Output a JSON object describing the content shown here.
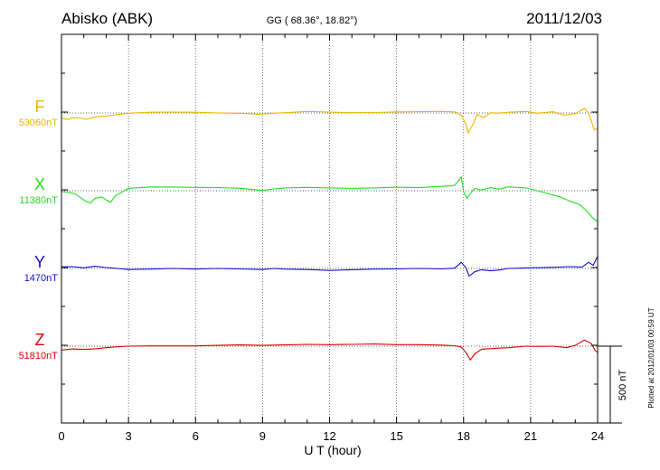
{
  "header": {
    "station": "Abisko (ABK)",
    "coords": "GG ( 68.36°,  18.82°)",
    "date": "2011/12/03"
  },
  "side_note": "Plotted at 2012/01/03 00:59 UT",
  "scale_bar": {
    "label": "500 nT",
    "value_nT": 500
  },
  "chart_data": {
    "type": "line",
    "xlabel": "U T (hour)",
    "xlim": [
      0,
      24
    ],
    "xticks": [
      0,
      3,
      6,
      9,
      12,
      15,
      18,
      21,
      24
    ],
    "xtick_labels": [
      "0",
      "3",
      "6",
      "9",
      "12",
      "15",
      "18",
      "21",
      "24"
    ],
    "grid": true,
    "series": [
      {
        "name": "F",
        "baseline_label": "53060nT",
        "baseline_nT": 53060,
        "color": "#f0b400",
        "points": [
          [
            0,
            53025
          ],
          [
            0.3,
            53018
          ],
          [
            0.5,
            53030
          ],
          [
            0.8,
            53028
          ],
          [
            1.1,
            53018
          ],
          [
            1.5,
            53035
          ],
          [
            2,
            53040
          ],
          [
            2.5,
            53050
          ],
          [
            3,
            53058
          ],
          [
            4,
            53065
          ],
          [
            5,
            53066
          ],
          [
            6,
            53065
          ],
          [
            7,
            53060
          ],
          [
            8,
            53058
          ],
          [
            8.8,
            53052
          ],
          [
            9.5,
            53058
          ],
          [
            10,
            53062
          ],
          [
            11,
            53070
          ],
          [
            12,
            53066
          ],
          [
            13,
            53062
          ],
          [
            14,
            53063
          ],
          [
            15,
            53067
          ],
          [
            16,
            53068
          ],
          [
            17,
            53070
          ],
          [
            17.6,
            53067
          ],
          [
            17.9,
            53045
          ],
          [
            18.1,
            52990
          ],
          [
            18.2,
            52930
          ],
          [
            18.4,
            52980
          ],
          [
            18.6,
            53050
          ],
          [
            18.9,
            53030
          ],
          [
            19.2,
            53062
          ],
          [
            19.5,
            53058
          ],
          [
            20,
            53065
          ],
          [
            20.8,
            53070
          ],
          [
            21.3,
            53058
          ],
          [
            22,
            53068
          ],
          [
            22.5,
            53045
          ],
          [
            23,
            53055
          ],
          [
            23.4,
            53090
          ],
          [
            23.6,
            53060
          ],
          [
            23.85,
            52950
          ],
          [
            24,
            52960
          ]
        ]
      },
      {
        "name": "X",
        "baseline_label": "11380nT",
        "baseline_nT": 11380,
        "color": "#22dd22",
        "points": [
          [
            0,
            11375
          ],
          [
            0.3,
            11370
          ],
          [
            0.6,
            11360
          ],
          [
            0.8,
            11340
          ],
          [
            1.1,
            11310
          ],
          [
            1.3,
            11300
          ],
          [
            1.5,
            11330
          ],
          [
            1.8,
            11340
          ],
          [
            2,
            11320
          ],
          [
            2.2,
            11305
          ],
          [
            2.4,
            11345
          ],
          [
            2.7,
            11370
          ],
          [
            3,
            11395
          ],
          [
            4,
            11405
          ],
          [
            5,
            11404
          ],
          [
            6,
            11402
          ],
          [
            7,
            11400
          ],
          [
            8,
            11396
          ],
          [
            8.5,
            11388
          ],
          [
            9,
            11382
          ],
          [
            9.5,
            11392
          ],
          [
            10,
            11398
          ],
          [
            11,
            11402
          ],
          [
            12,
            11398
          ],
          [
            13,
            11396
          ],
          [
            14,
            11398
          ],
          [
            15,
            11403
          ],
          [
            16,
            11400
          ],
          [
            17,
            11408
          ],
          [
            17.6,
            11415
          ],
          [
            17.9,
            11470
          ],
          [
            18,
            11375
          ],
          [
            18.15,
            11330
          ],
          [
            18.3,
            11360
          ],
          [
            18.5,
            11395
          ],
          [
            18.8,
            11385
          ],
          [
            19.2,
            11400
          ],
          [
            19.6,
            11390
          ],
          [
            20,
            11405
          ],
          [
            20.8,
            11398
          ],
          [
            21.3,
            11380
          ],
          [
            21.8,
            11360
          ],
          [
            22.3,
            11340
          ],
          [
            22.8,
            11310
          ],
          [
            23.2,
            11290
          ],
          [
            23.5,
            11250
          ],
          [
            23.8,
            11200
          ],
          [
            24,
            11180
          ]
        ]
      },
      {
        "name": "Y",
        "baseline_label": "1470nT",
        "baseline_nT": 1470,
        "color": "#1010d0",
        "points": [
          [
            0,
            1480
          ],
          [
            0.5,
            1482
          ],
          [
            1,
            1474
          ],
          [
            1.5,
            1484
          ],
          [
            2,
            1476
          ],
          [
            2.5,
            1470
          ],
          [
            3,
            1463
          ],
          [
            4,
            1466
          ],
          [
            5,
            1470
          ],
          [
            6,
            1466
          ],
          [
            7,
            1470
          ],
          [
            8,
            1467
          ],
          [
            9,
            1463
          ],
          [
            9.5,
            1470
          ],
          [
            10,
            1466
          ],
          [
            11,
            1463
          ],
          [
            12,
            1457
          ],
          [
            13,
            1462
          ],
          [
            14,
            1466
          ],
          [
            15,
            1467
          ],
          [
            16,
            1470
          ],
          [
            17,
            1467
          ],
          [
            17.6,
            1472
          ],
          [
            17.9,
            1510
          ],
          [
            18.1,
            1475
          ],
          [
            18.25,
            1420
          ],
          [
            18.5,
            1448
          ],
          [
            18.8,
            1462
          ],
          [
            19.2,
            1455
          ],
          [
            19.6,
            1460
          ],
          [
            20,
            1470
          ],
          [
            21,
            1474
          ],
          [
            22,
            1477
          ],
          [
            22.8,
            1482
          ],
          [
            23.3,
            1478
          ],
          [
            23.6,
            1510
          ],
          [
            23.8,
            1490
          ],
          [
            24,
            1550
          ]
        ]
      },
      {
        "name": "Z",
        "baseline_label": "51810nT",
        "baseline_nT": 51810,
        "color": "#dd0000",
        "points": [
          [
            0,
            51785
          ],
          [
            0.5,
            51792
          ],
          [
            1,
            51789
          ],
          [
            1.5,
            51793
          ],
          [
            2,
            51800
          ],
          [
            2.5,
            51806
          ],
          [
            3,
            51810
          ],
          [
            4,
            51812
          ],
          [
            5,
            51812
          ],
          [
            6,
            51812
          ],
          [
            7,
            51815
          ],
          [
            8,
            51818
          ],
          [
            9,
            51815
          ],
          [
            10,
            51818
          ],
          [
            11,
            51822
          ],
          [
            12,
            51820
          ],
          [
            13,
            51822
          ],
          [
            14,
            51824
          ],
          [
            15,
            51820
          ],
          [
            16,
            51820
          ],
          [
            17,
            51817
          ],
          [
            17.6,
            51813
          ],
          [
            17.9,
            51805
          ],
          [
            18.1,
            51770
          ],
          [
            18.3,
            51720
          ],
          [
            18.5,
            51760
          ],
          [
            18.8,
            51790
          ],
          [
            19.3,
            51795
          ],
          [
            20,
            51800
          ],
          [
            20.8,
            51810
          ],
          [
            21.4,
            51808
          ],
          [
            22,
            51810
          ],
          [
            22.6,
            51800
          ],
          [
            23,
            51815
          ],
          [
            23.4,
            51850
          ],
          [
            23.7,
            51830
          ],
          [
            23.9,
            51780
          ],
          [
            24,
            51770
          ]
        ]
      }
    ]
  }
}
